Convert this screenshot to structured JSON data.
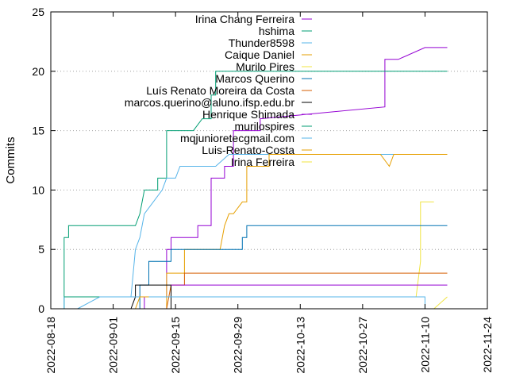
{
  "chart_data": {
    "type": "line",
    "title": "",
    "xlabel": "",
    "ylabel": "Commits",
    "ylim": [
      0,
      25
    ],
    "yticks": [
      0,
      5,
      10,
      15,
      20,
      25
    ],
    "xlim": [
      "2022-08-18",
      "2022-11-24"
    ],
    "xticks": [
      "2022-08-18",
      "2022-09-01",
      "2022-09-15",
      "2022-09-29",
      "2022-10-13",
      "2022-10-27",
      "2022-11-10",
      "2022-11-24"
    ],
    "grid": "horizontal-dotted",
    "legend_position": "top-right",
    "series": [
      {
        "name": "Irina Chang Ferreira",
        "color": "#9400d3",
        "points": [
          [
            "2022-09-08",
            0
          ],
          [
            "2022-09-08",
            1
          ],
          [
            "2022-09-13",
            1
          ],
          [
            "2022-09-13",
            5
          ],
          [
            "2022-09-14",
            5
          ],
          [
            "2022-09-14",
            6
          ],
          [
            "2022-09-20",
            6
          ],
          [
            "2022-09-20",
            7
          ],
          [
            "2022-09-23",
            7
          ],
          [
            "2022-09-23",
            11
          ],
          [
            "2022-09-26",
            11
          ],
          [
            "2022-09-26",
            12
          ],
          [
            "2022-09-28",
            12
          ],
          [
            "2022-09-28",
            15
          ],
          [
            "2022-10-04",
            15
          ],
          [
            "2022-10-04",
            16
          ],
          [
            "2022-11-01",
            17
          ],
          [
            "2022-11-01",
            21
          ],
          [
            "2022-11-04",
            21
          ],
          [
            "2022-11-10",
            22
          ],
          [
            "2022-11-15",
            22
          ]
        ]
      },
      {
        "name": "hshima",
        "color": "#009e73",
        "points": [
          [
            "2022-08-21",
            0
          ],
          [
            "2022-08-21",
            6
          ],
          [
            "2022-08-22",
            6
          ],
          [
            "2022-08-22",
            7
          ],
          [
            "2022-08-23",
            7
          ],
          [
            "2022-09-06",
            7
          ],
          [
            "2022-09-07",
            8
          ],
          [
            "2022-09-08",
            10
          ],
          [
            "2022-09-11",
            10
          ],
          [
            "2022-09-11",
            11
          ],
          [
            "2022-09-13",
            11
          ],
          [
            "2022-09-13",
            15
          ],
          [
            "2022-09-19",
            15
          ],
          [
            "2022-09-21",
            16
          ],
          [
            "2022-09-23",
            16
          ],
          [
            "2022-09-23",
            18
          ],
          [
            "2022-09-24",
            18
          ],
          [
            "2022-09-24",
            20
          ],
          [
            "2022-11-15",
            20
          ]
        ]
      },
      {
        "name": "Thunder8598",
        "color": "#56b4e9",
        "points": [
          [
            "2022-08-21",
            0
          ],
          [
            "2022-08-21",
            1
          ],
          [
            "2022-09-05",
            1
          ],
          [
            "2022-09-06",
            5
          ],
          [
            "2022-09-07",
            6
          ],
          [
            "2022-09-08",
            8
          ],
          [
            "2022-09-10",
            9
          ],
          [
            "2022-09-12",
            10
          ],
          [
            "2022-09-13",
            11
          ],
          [
            "2022-09-15",
            11
          ],
          [
            "2022-09-16",
            12
          ],
          [
            "2022-09-24",
            12
          ],
          [
            "2022-09-27",
            13
          ],
          [
            "2022-11-15",
            13
          ]
        ]
      },
      {
        "name": "Caique Daniel",
        "color": "#e69f00",
        "points": [
          [
            "2022-09-13",
            0
          ],
          [
            "2022-09-13",
            3
          ],
          [
            "2022-09-17",
            3
          ],
          [
            "2022-09-17",
            5
          ],
          [
            "2022-09-25",
            5
          ],
          [
            "2022-09-26",
            7
          ],
          [
            "2022-09-27",
            8
          ],
          [
            "2022-09-28",
            8
          ],
          [
            "2022-09-30",
            9
          ],
          [
            "2022-10-01",
            9
          ],
          [
            "2022-10-01",
            12
          ],
          [
            "2022-10-06",
            12
          ],
          [
            "2022-10-06",
            13
          ],
          [
            "2022-10-31",
            13
          ],
          [
            "2022-11-02",
            12
          ],
          [
            "2022-11-03",
            13
          ],
          [
            "2022-11-15",
            13
          ]
        ]
      },
      {
        "name": "Murilo Pires",
        "color": "#f0e442",
        "points": [
          [
            "2022-09-14",
            1
          ],
          [
            "2022-11-08",
            1
          ],
          [
            "2022-11-09",
            4
          ],
          [
            "2022-11-09",
            9
          ],
          [
            "2022-11-12",
            9
          ]
        ]
      },
      {
        "name": "Marcos Querino",
        "color": "#0072b2",
        "points": [
          [
            "2022-09-07",
            0
          ],
          [
            "2022-09-07",
            2
          ],
          [
            "2022-09-09",
            2
          ],
          [
            "2022-09-09",
            4
          ],
          [
            "2022-09-14",
            4
          ],
          [
            "2022-09-14",
            5
          ],
          [
            "2022-09-30",
            5
          ],
          [
            "2022-09-30",
            6
          ],
          [
            "2022-10-01",
            6
          ],
          [
            "2022-10-01",
            7
          ],
          [
            "2022-11-15",
            7
          ]
        ]
      },
      {
        "name": "Luís Renato Moreira da Costa",
        "color": "#d55e00",
        "points": [
          [
            "2022-09-13",
            0
          ],
          [
            "2022-09-14",
            2
          ],
          [
            "2022-09-17",
            2
          ],
          [
            "2022-09-17",
            3
          ],
          [
            "2022-11-15",
            3
          ]
        ]
      },
      {
        "name": "marcos.querino@aluno.ifsp.edu.br",
        "color": "#000000",
        "points": [
          [
            "2022-09-05",
            0
          ],
          [
            "2022-09-06",
            1
          ],
          [
            "2022-09-06",
            2
          ],
          [
            "2022-09-14",
            2
          ],
          [
            "2022-09-14",
            0
          ]
        ]
      },
      {
        "name": "Henrique Shimada",
        "color": "#9400d3",
        "points": [
          [
            "2022-09-14",
            2
          ],
          [
            "2022-11-15",
            2
          ]
        ]
      },
      {
        "name": "murilospires",
        "color": "#009e73",
        "points": [
          [
            "2022-08-21",
            1
          ],
          [
            "2022-09-05",
            1
          ]
        ]
      },
      {
        "name": "mqjunioretecgmail.com",
        "color": "#56b4e9",
        "points": [
          [
            "2022-08-24",
            0
          ],
          [
            "2022-08-29",
            1
          ],
          [
            "2022-11-10",
            1
          ],
          [
            "2022-11-10",
            0
          ]
        ]
      },
      {
        "name": "Luis-Renato-Costa",
        "color": "#e69f00",
        "points": [
          [
            "2022-09-06",
            0
          ],
          [
            "2022-09-07",
            1
          ],
          [
            "2022-09-09",
            1
          ]
        ]
      },
      {
        "name": "Irina Ferreira",
        "color": "#f0e442",
        "points": [
          [
            "2022-11-12",
            0
          ],
          [
            "2022-11-15",
            1
          ]
        ]
      }
    ]
  }
}
